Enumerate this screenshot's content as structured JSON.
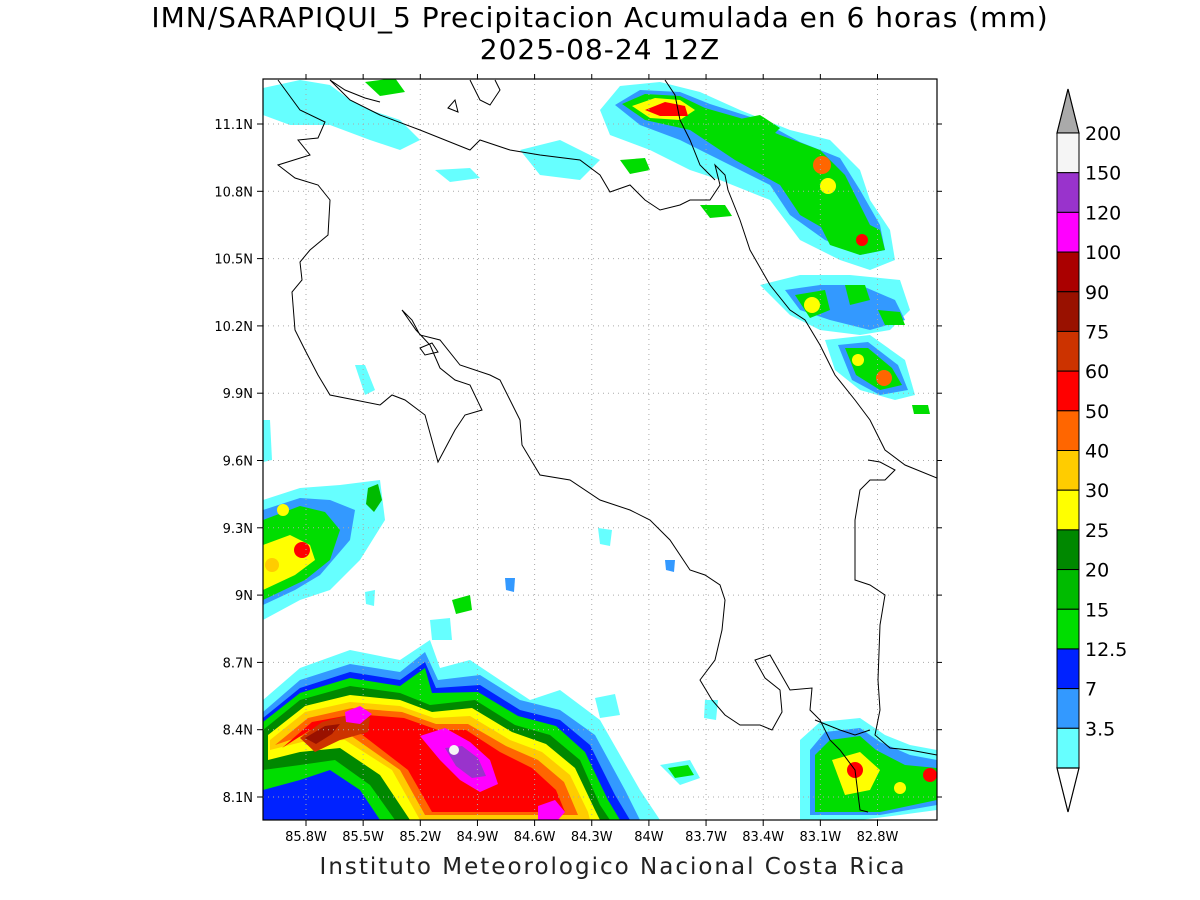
{
  "title": {
    "line1": "IMN/SARAPIQUI_5 Precipitacion Acumulada en 6 horas (mm)",
    "line2": "2025-08-24 12Z"
  },
  "footer": "Instituto Meteorologico Nacional Costa Rica",
  "map": {
    "lon_range": [
      -86.0,
      -83.0
    ],
    "lat_range": [
      8.0,
      11.3
    ],
    "lon_ticks": [
      "85.8W",
      "85.5W",
      "85.2W",
      "84.9W",
      "84.6W",
      "84.3W",
      "84W",
      "83.7W",
      "83.4W",
      "83.1W",
      "82.8W"
    ],
    "lat_ticks": [
      "11.1N",
      "10.8N",
      "10.5N",
      "10.2N",
      "9.9N",
      "9.6N",
      "9.3N",
      "9N",
      "8.7N",
      "8.4N",
      "8.1N"
    ],
    "grid": "dotted"
  },
  "colorbar": {
    "labels": [
      "3.5",
      "7",
      "12.5",
      "15",
      "20",
      "25",
      "30",
      "40",
      "50",
      "60",
      "75",
      "90",
      "100",
      "120",
      "150",
      "200"
    ],
    "colors": [
      "#66ffff",
      "#3399ff",
      "#0022ff",
      "#00dd00",
      "#00bb00",
      "#008800",
      "#ffff00",
      "#ffcc00",
      "#ff6600",
      "#ff0000",
      "#cc3300",
      "#991100",
      "#aa0000",
      "#ff00ff",
      "#9933cc",
      "#f5f5f5"
    ],
    "top_arrow_color": "#aaaaaa",
    "bottom_arrow_color": "#ffffff"
  }
}
